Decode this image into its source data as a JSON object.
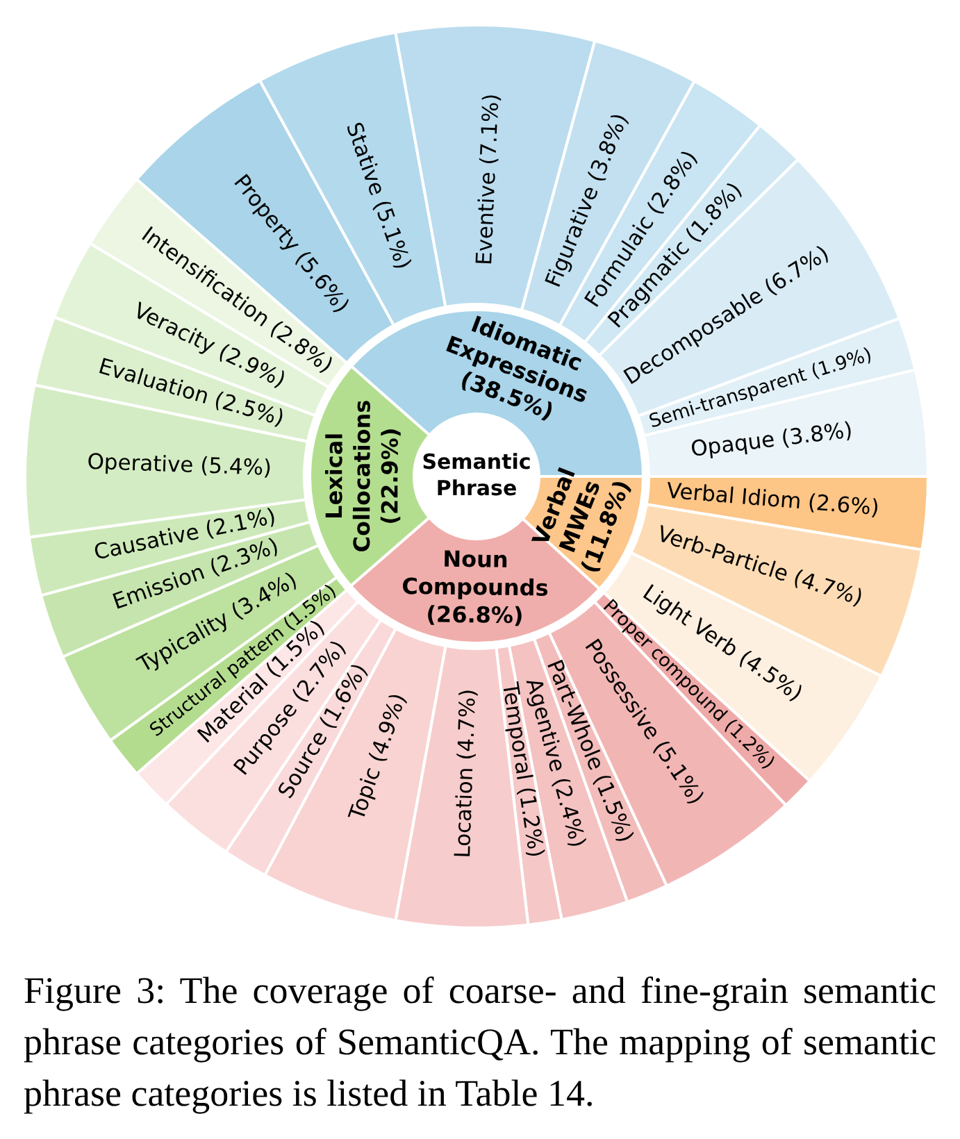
{
  "chart_data": [
    {
      "type": "donut",
      "title": "Semantic Phrase",
      "categories": [
        "Verbal MWEs",
        "Noun Compounds",
        "Lexical Collocations",
        "Idiomatic Expressions"
      ],
      "values": [
        11.8,
        26.8,
        22.9,
        38.5
      ],
      "value_labels": [
        "(11.8%)",
        "(26.8%)",
        "(22.9%)",
        "(38.5%)"
      ],
      "colors": [
        "#fdc68a",
        "#efaeab",
        "#b4de8f",
        "#a9d4e9"
      ]
    },
    {
      "type": "donut",
      "categories": [
        "Verbal Idiom",
        "Verb-Particle",
        "Light Verb",
        "Proper compound",
        "Possessive",
        "Part-Whole",
        "Agentive",
        "Temporal",
        "Location",
        "Topic",
        "Source",
        "Purpose",
        "Material",
        "Structural pattern",
        "Typicality",
        "Emission",
        "Causative",
        "Operative",
        "Evaluation",
        "Veracity",
        "Intensification",
        "Property",
        "Stative",
        "Eventive",
        "Figurative",
        "Formulaic",
        "Pragmatic",
        "Decomposable",
        "Semi-transparent",
        "Opaque"
      ],
      "values": [
        2.6,
        4.7,
        4.5,
        1.2,
        5.1,
        1.5,
        2.4,
        1.2,
        4.7,
        4.9,
        1.6,
        2.7,
        1.5,
        1.5,
        3.4,
        2.3,
        2.1,
        5.4,
        2.5,
        2.9,
        2.8,
        5.6,
        5.1,
        7.1,
        3.8,
        2.8,
        1.8,
        6.7,
        1.9,
        3.8
      ],
      "value_labels": [
        "(2.6%)",
        "(4.7%)",
        "(4.5%)",
        "(1.2%)",
        "(5.1%)",
        "(1.5%)",
        "(2.4%)",
        "(1.2%)",
        "(4.7%)",
        "(4.9%)",
        "(1.6%)",
        "(2.7%)",
        "(1.5%)",
        "(1.5%)",
        "(3.4%)",
        "(2.3%)",
        "(2.1%)",
        "(5.4%)",
        "(2.5%)",
        "(2.9%)",
        "(2.8%)",
        "(5.6%)",
        "(5.1%)",
        "(7.1%)",
        "(3.8%)",
        "(2.8%)",
        "(1.8%)",
        "(6.7%)",
        "(1.9%)",
        "(3.8%)"
      ],
      "colors": [
        "#fdc586",
        "#fddcb5",
        "#fef0e0",
        "#eeaaa8",
        "#f1b6b4",
        "#f2bcbb",
        "#f3c2c1",
        "#f5c8c7",
        "#f6cdcc",
        "#f8d3d2",
        "#f9d9d9",
        "#fbdfdf",
        "#fde6e6",
        "#b4dc8e",
        "#bde19f",
        "#c6e5ae",
        "#cde9b9",
        "#d4ecc3",
        "#dbefcd",
        "#e3f3d8",
        "#ecf6e3",
        "#a9d4e9",
        "#b3d9ec",
        "#badcee",
        "#c2e0f0",
        "#c9e4f2",
        "#d0e8f3",
        "#d9ecf6",
        "#e1f0f7",
        "#eaf4f9"
      ],
      "annotations": [
        "Figure 3: The coverage of coarse- and fine-grain semantic phrase categories of SemanticQA. The mapping of semantic phrase categories is listed in Table 14."
      ]
    }
  ]
}
